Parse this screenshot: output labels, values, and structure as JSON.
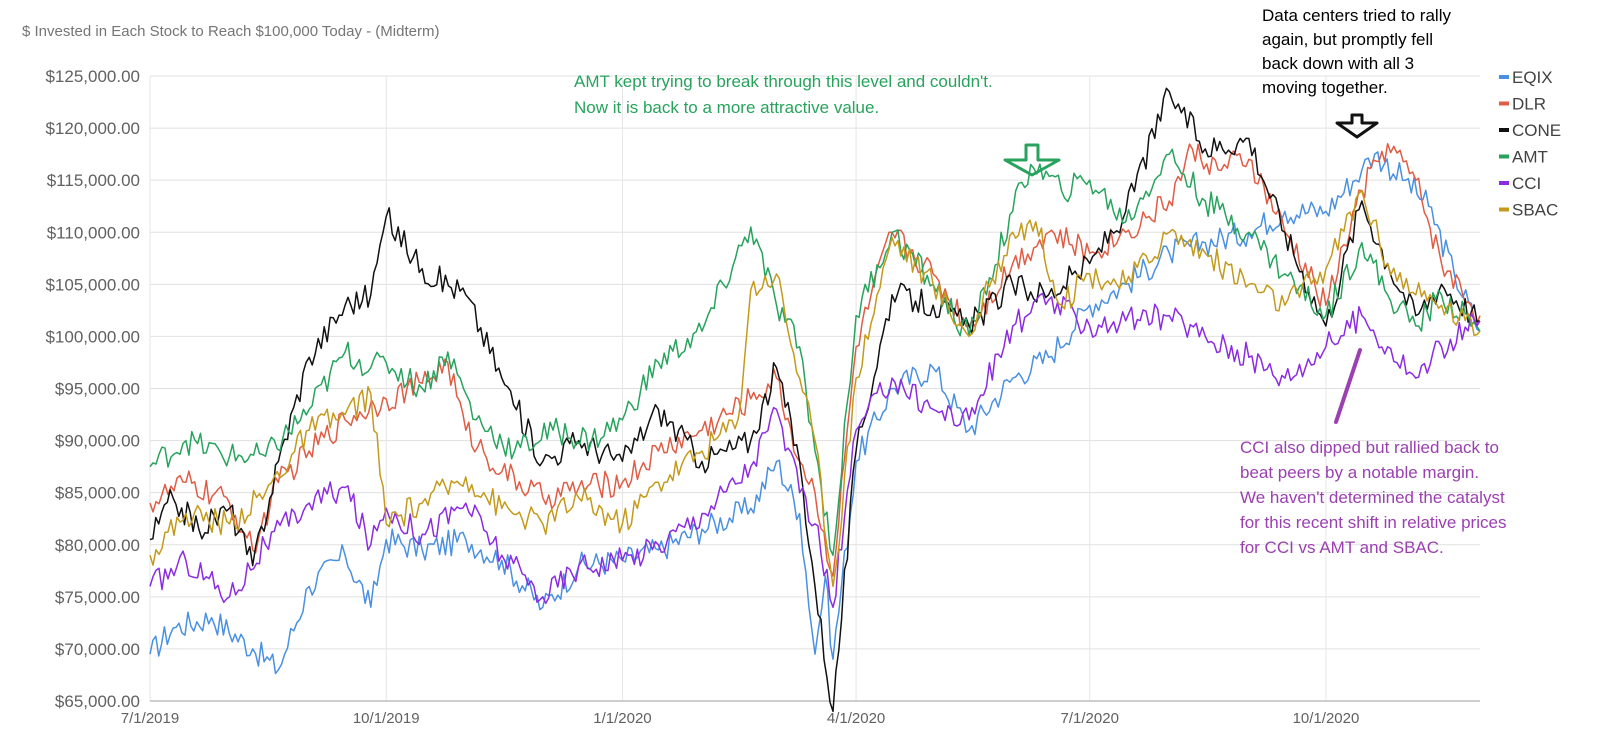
{
  "chart_data": {
    "type": "line",
    "title": "$ Invested in Each Stock to Reach $100,000 Today - (Midterm)",
    "y_ticks": [
      "$65,000.00",
      "$70,000.00",
      "$75,000.00",
      "$80,000.00",
      "$85,000.00",
      "$90,000.00",
      "$95,000.00",
      "$100,000.00",
      "$105,000.00",
      "$110,000.00",
      "$115,000.00",
      "$120,000.00",
      "$125,000.00"
    ],
    "x_ticks": [
      "7/1/2019",
      "10/1/2019",
      "1/1/2020",
      "4/1/2020",
      "7/1/2020",
      "10/1/2020"
    ],
    "ylim": [
      65000,
      125000
    ],
    "xlim": [
      "2019-07-01",
      "2020-11-30"
    ],
    "grid": true,
    "legend_position": "right",
    "series": [
      {
        "name": "EQIX",
        "color": "#4a90e2",
        "points": [
          [
            "2019-07-01",
            69500
          ],
          [
            "2019-07-10",
            72000
          ],
          [
            "2019-07-25",
            73000
          ],
          [
            "2019-08-10",
            70000
          ],
          [
            "2019-08-20",
            68000
          ],
          [
            "2019-09-01",
            76000
          ],
          [
            "2019-09-15",
            79000
          ],
          [
            "2019-09-25",
            74000
          ],
          [
            "2019-10-01",
            80500
          ],
          [
            "2019-10-15",
            79500
          ],
          [
            "2019-11-01",
            80500
          ],
          [
            "2019-11-15",
            78500
          ],
          [
            "2019-12-01",
            74000
          ],
          [
            "2019-12-15",
            78000
          ],
          [
            "2020-01-01",
            78500
          ],
          [
            "2020-01-15",
            79500
          ],
          [
            "2020-02-01",
            81500
          ],
          [
            "2020-02-20",
            83500
          ],
          [
            "2020-03-01",
            88000
          ],
          [
            "2020-03-10",
            83000
          ],
          [
            "2020-03-16",
            69500
          ],
          [
            "2020-03-20",
            77000
          ],
          [
            "2020-03-23",
            69000
          ],
          [
            "2020-04-01",
            88000
          ],
          [
            "2020-04-15",
            95000
          ],
          [
            "2020-05-01",
            97000
          ],
          [
            "2020-05-15",
            91000
          ],
          [
            "2020-06-01",
            96000
          ],
          [
            "2020-06-15",
            98000
          ],
          [
            "2020-07-01",
            103000
          ],
          [
            "2020-07-15",
            105000
          ],
          [
            "2020-08-01",
            108000
          ],
          [
            "2020-08-15",
            109000
          ],
          [
            "2020-09-01",
            110000
          ],
          [
            "2020-09-15",
            112000
          ],
          [
            "2020-10-01",
            112000
          ],
          [
            "2020-10-15",
            116000
          ],
          [
            "2020-10-20",
            117500
          ],
          [
            "2020-11-01",
            115000
          ],
          [
            "2020-11-10",
            112500
          ],
          [
            "2020-11-20",
            106000
          ],
          [
            "2020-11-30",
            100500
          ]
        ]
      },
      {
        "name": "DLR",
        "color": "#e05c44",
        "points": [
          [
            "2019-07-01",
            84000
          ],
          [
            "2019-07-15",
            86000
          ],
          [
            "2019-08-01",
            84000
          ],
          [
            "2019-08-10",
            79500
          ],
          [
            "2019-08-20",
            86000
          ],
          [
            "2019-09-01",
            89000
          ],
          [
            "2019-09-15",
            92000
          ],
          [
            "2019-10-01",
            94000
          ],
          [
            "2019-10-15",
            95500
          ],
          [
            "2019-10-25",
            97500
          ],
          [
            "2019-11-01",
            91000
          ],
          [
            "2019-11-15",
            87000
          ],
          [
            "2019-12-01",
            84500
          ],
          [
            "2019-12-15",
            85500
          ],
          [
            "2020-01-01",
            86000
          ],
          [
            "2020-01-15",
            89000
          ],
          [
            "2020-02-01",
            91000
          ],
          [
            "2020-02-20",
            94000
          ],
          [
            "2020-03-01",
            96000
          ],
          [
            "2020-03-10",
            88000
          ],
          [
            "2020-03-16",
            85000
          ],
          [
            "2020-03-23",
            77000
          ],
          [
            "2020-04-01",
            99000
          ],
          [
            "2020-04-15",
            110000
          ],
          [
            "2020-05-01",
            106000
          ],
          [
            "2020-05-15",
            101000
          ],
          [
            "2020-06-01",
            107000
          ],
          [
            "2020-06-15",
            110000
          ],
          [
            "2020-07-01",
            108000
          ],
          [
            "2020-07-15",
            110000
          ],
          [
            "2020-08-01",
            113000
          ],
          [
            "2020-08-10",
            118000
          ],
          [
            "2020-08-20",
            116000
          ],
          [
            "2020-09-01",
            117000
          ],
          [
            "2020-09-15",
            110000
          ],
          [
            "2020-10-01",
            103000
          ],
          [
            "2020-10-15",
            114000
          ],
          [
            "2020-10-25",
            118500
          ],
          [
            "2020-11-05",
            115000
          ],
          [
            "2020-11-15",
            107000
          ],
          [
            "2020-11-30",
            102000
          ]
        ]
      },
      {
        "name": "CONE",
        "color": "#111111",
        "points": [
          [
            "2019-07-01",
            80500
          ],
          [
            "2019-07-10",
            84500
          ],
          [
            "2019-07-20",
            81500
          ],
          [
            "2019-08-01",
            83500
          ],
          [
            "2019-08-10",
            78000
          ],
          [
            "2019-08-20",
            88000
          ],
          [
            "2019-09-01",
            98000
          ],
          [
            "2019-09-15",
            103000
          ],
          [
            "2019-09-25",
            104000
          ],
          [
            "2019-10-01",
            111500
          ],
          [
            "2019-10-15",
            106500
          ],
          [
            "2019-11-01",
            104000
          ],
          [
            "2019-11-15",
            96000
          ],
          [
            "2019-12-01",
            88000
          ],
          [
            "2019-12-15",
            90000
          ],
          [
            "2020-01-01",
            88000
          ],
          [
            "2020-01-15",
            93000
          ],
          [
            "2020-02-01",
            88000
          ],
          [
            "2020-02-20",
            90000
          ],
          [
            "2020-03-01",
            97000
          ],
          [
            "2020-03-10",
            88000
          ],
          [
            "2020-03-16",
            76000
          ],
          [
            "2020-03-23",
            64000
          ],
          [
            "2020-04-01",
            89000
          ],
          [
            "2020-04-15",
            104000
          ],
          [
            "2020-05-01",
            103000
          ],
          [
            "2020-05-15",
            101000
          ],
          [
            "2020-06-01",
            105000
          ],
          [
            "2020-06-15",
            104000
          ],
          [
            "2020-07-01",
            107000
          ],
          [
            "2020-07-15",
            112000
          ],
          [
            "2020-08-01",
            123500
          ],
          [
            "2020-08-15",
            118000
          ],
          [
            "2020-09-01",
            119000
          ],
          [
            "2020-09-15",
            110000
          ],
          [
            "2020-10-01",
            101000
          ],
          [
            "2020-10-15",
            113000
          ],
          [
            "2020-10-25",
            107000
          ],
          [
            "2020-11-05",
            102000
          ],
          [
            "2020-11-15",
            105000
          ],
          [
            "2020-11-30",
            101500
          ]
        ]
      },
      {
        "name": "AMT",
        "color": "#27a35d",
        "points": [
          [
            "2019-07-01",
            87500
          ],
          [
            "2019-07-15",
            90000
          ],
          [
            "2019-08-01",
            88500
          ],
          [
            "2019-08-15",
            88500
          ],
          [
            "2019-09-01",
            93000
          ],
          [
            "2019-09-15",
            98500
          ],
          [
            "2019-09-25",
            97000
          ],
          [
            "2019-10-01",
            97500
          ],
          [
            "2019-10-15",
            95000
          ],
          [
            "2019-10-25",
            98500
          ],
          [
            "2019-11-05",
            92000
          ],
          [
            "2019-11-20",
            89000
          ],
          [
            "2019-12-05",
            91000
          ],
          [
            "2019-12-20",
            90000
          ],
          [
            "2020-01-01",
            92000
          ],
          [
            "2020-01-15",
            97500
          ],
          [
            "2020-02-01",
            100500
          ],
          [
            "2020-02-20",
            110500
          ],
          [
            "2020-03-01",
            103000
          ],
          [
            "2020-03-10",
            99000
          ],
          [
            "2020-03-16",
            89000
          ],
          [
            "2020-03-23",
            79000
          ],
          [
            "2020-04-01",
            102000
          ],
          [
            "2020-04-15",
            110000
          ],
          [
            "2020-05-01",
            105000
          ],
          [
            "2020-05-15",
            100000
          ],
          [
            "2020-06-01",
            112000
          ],
          [
            "2020-06-08",
            116500
          ],
          [
            "2020-06-20",
            114000
          ],
          [
            "2020-07-01",
            115000
          ],
          [
            "2020-07-15",
            111000
          ],
          [
            "2020-08-01",
            117500
          ],
          [
            "2020-08-15",
            113000
          ],
          [
            "2020-09-01",
            110000
          ],
          [
            "2020-09-15",
            106000
          ],
          [
            "2020-10-01",
            102000
          ],
          [
            "2020-10-15",
            109000
          ],
          [
            "2020-10-25",
            104000
          ],
          [
            "2020-11-05",
            101000
          ],
          [
            "2020-11-15",
            104000
          ],
          [
            "2020-11-30",
            100500
          ]
        ]
      },
      {
        "name": "CCI",
        "color": "#8b2be2",
        "points": [
          [
            "2019-07-01",
            76000
          ],
          [
            "2019-07-15",
            78500
          ],
          [
            "2019-08-01",
            75000
          ],
          [
            "2019-08-15",
            80000
          ],
          [
            "2019-09-01",
            84000
          ],
          [
            "2019-09-15",
            85500
          ],
          [
            "2019-09-25",
            80000
          ],
          [
            "2019-10-01",
            83500
          ],
          [
            "2019-10-15",
            81000
          ],
          [
            "2019-11-01",
            84000
          ],
          [
            "2019-11-15",
            79000
          ],
          [
            "2019-12-01",
            75000
          ],
          [
            "2019-12-15",
            78000
          ],
          [
            "2020-01-01",
            78500
          ],
          [
            "2020-01-15",
            80000
          ],
          [
            "2020-02-01",
            83000
          ],
          [
            "2020-02-20",
            87500
          ],
          [
            "2020-03-01",
            93000
          ],
          [
            "2020-03-10",
            85000
          ],
          [
            "2020-03-16",
            82000
          ],
          [
            "2020-03-23",
            74000
          ],
          [
            "2020-04-01",
            91000
          ],
          [
            "2020-04-15",
            96000
          ],
          [
            "2020-05-01",
            93000
          ],
          [
            "2020-05-15",
            92000
          ],
          [
            "2020-06-01",
            101000
          ],
          [
            "2020-06-15",
            103500
          ],
          [
            "2020-07-01",
            101000
          ],
          [
            "2020-07-15",
            101500
          ],
          [
            "2020-08-01",
            102000
          ],
          [
            "2020-08-15",
            100000
          ],
          [
            "2020-09-01",
            98000
          ],
          [
            "2020-09-15",
            96000
          ],
          [
            "2020-10-01",
            99000
          ],
          [
            "2020-10-15",
            102000
          ],
          [
            "2020-10-25",
            99000
          ],
          [
            "2020-11-05",
            96000
          ],
          [
            "2020-11-15",
            99000
          ],
          [
            "2020-11-30",
            101500
          ]
        ]
      },
      {
        "name": "SBAC",
        "color": "#c49a1c",
        "points": [
          [
            "2019-07-01",
            79000
          ],
          [
            "2019-07-15",
            83000
          ],
          [
            "2019-08-01",
            82000
          ],
          [
            "2019-08-15",
            85000
          ],
          [
            "2019-09-01",
            91000
          ],
          [
            "2019-09-15",
            92500
          ],
          [
            "2019-09-25",
            94500
          ],
          [
            "2019-10-01",
            82000
          ],
          [
            "2019-10-15",
            84000
          ],
          [
            "2019-11-01",
            86500
          ],
          [
            "2019-11-15",
            83500
          ],
          [
            "2019-12-01",
            82000
          ],
          [
            "2019-12-15",
            84500
          ],
          [
            "2020-01-01",
            82000
          ],
          [
            "2020-01-15",
            86000
          ],
          [
            "2020-02-01",
            89000
          ],
          [
            "2020-02-15",
            92000
          ],
          [
            "2020-02-20",
            104500
          ],
          [
            "2020-03-01",
            106000
          ],
          [
            "2020-03-10",
            96000
          ],
          [
            "2020-03-16",
            90000
          ],
          [
            "2020-03-23",
            76000
          ],
          [
            "2020-04-01",
            96000
          ],
          [
            "2020-04-15",
            109500
          ],
          [
            "2020-05-01",
            105000
          ],
          [
            "2020-05-15",
            100000
          ],
          [
            "2020-06-01",
            110000
          ],
          [
            "2020-06-10",
            111000
          ],
          [
            "2020-06-20",
            103000
          ],
          [
            "2020-07-01",
            106000
          ],
          [
            "2020-07-15",
            105000
          ],
          [
            "2020-08-01",
            110000
          ],
          [
            "2020-08-15",
            108000
          ],
          [
            "2020-09-01",
            105000
          ],
          [
            "2020-09-15",
            103000
          ],
          [
            "2020-10-01",
            106500
          ],
          [
            "2020-10-15",
            114000
          ],
          [
            "2020-10-25",
            107000
          ],
          [
            "2020-11-05",
            104000
          ],
          [
            "2020-11-15",
            103000
          ],
          [
            "2020-11-30",
            100500
          ]
        ]
      }
    ],
    "annotations": {
      "amt": {
        "lines": [
          "AMT kept trying to break through this level and couldn't.",
          "Now it is back to a more attractive value."
        ],
        "color": "#27a35d"
      },
      "dc": {
        "lines": [
          "Data centers tried to rally",
          "again, but promptly fell",
          "back down with all 3",
          "moving together."
        ],
        "color": "#000000"
      },
      "cci": {
        "lines": [
          "CCI also dipped but rallied back to",
          "beat peers by a notable margin.",
          "We haven't determined the catalyst",
          "for this recent shift in relative prices",
          "for CCI vs AMT and SBAC."
        ],
        "color": "#9b40b0"
      }
    }
  }
}
